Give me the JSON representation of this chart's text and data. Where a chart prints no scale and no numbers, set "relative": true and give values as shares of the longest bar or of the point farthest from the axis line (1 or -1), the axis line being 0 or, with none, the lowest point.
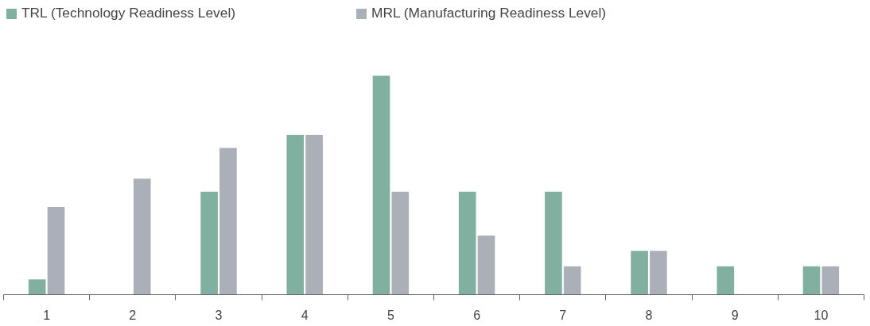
{
  "chart_data": {
    "type": "bar",
    "relative": true,
    "categories": [
      "1",
      "2",
      "3",
      "4",
      "5",
      "6",
      "7",
      "8",
      "9",
      "10"
    ],
    "series": [
      {
        "name": "TRL (Technology Readiness Level)",
        "color": "#82b0a0",
        "values": [
          0.07,
          0,
          0.47,
          0.73,
          1,
          0.47,
          0.47,
          0.2,
          0.13,
          0.13
        ]
      },
      {
        "name": "MRL (Manufacturing Readiness Level)",
        "color": "#abb0b8",
        "values": [
          0.4,
          0.53,
          0.67,
          0.73,
          0.47,
          0.27,
          0.13,
          0.2,
          0,
          0.13
        ]
      }
    ],
    "legend": "top left"
  }
}
